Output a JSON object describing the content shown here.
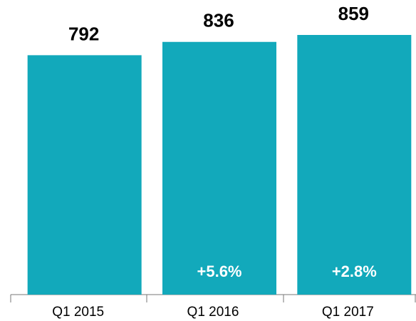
{
  "chart_data": {
    "type": "bar",
    "categories": [
      "Q1 2015",
      "Q1 2016",
      "Q1 2017"
    ],
    "values": [
      792,
      836,
      859
    ],
    "changes": [
      null,
      "+5.6%",
      "+2.8%"
    ],
    "color": "#12a9bb"
  }
}
